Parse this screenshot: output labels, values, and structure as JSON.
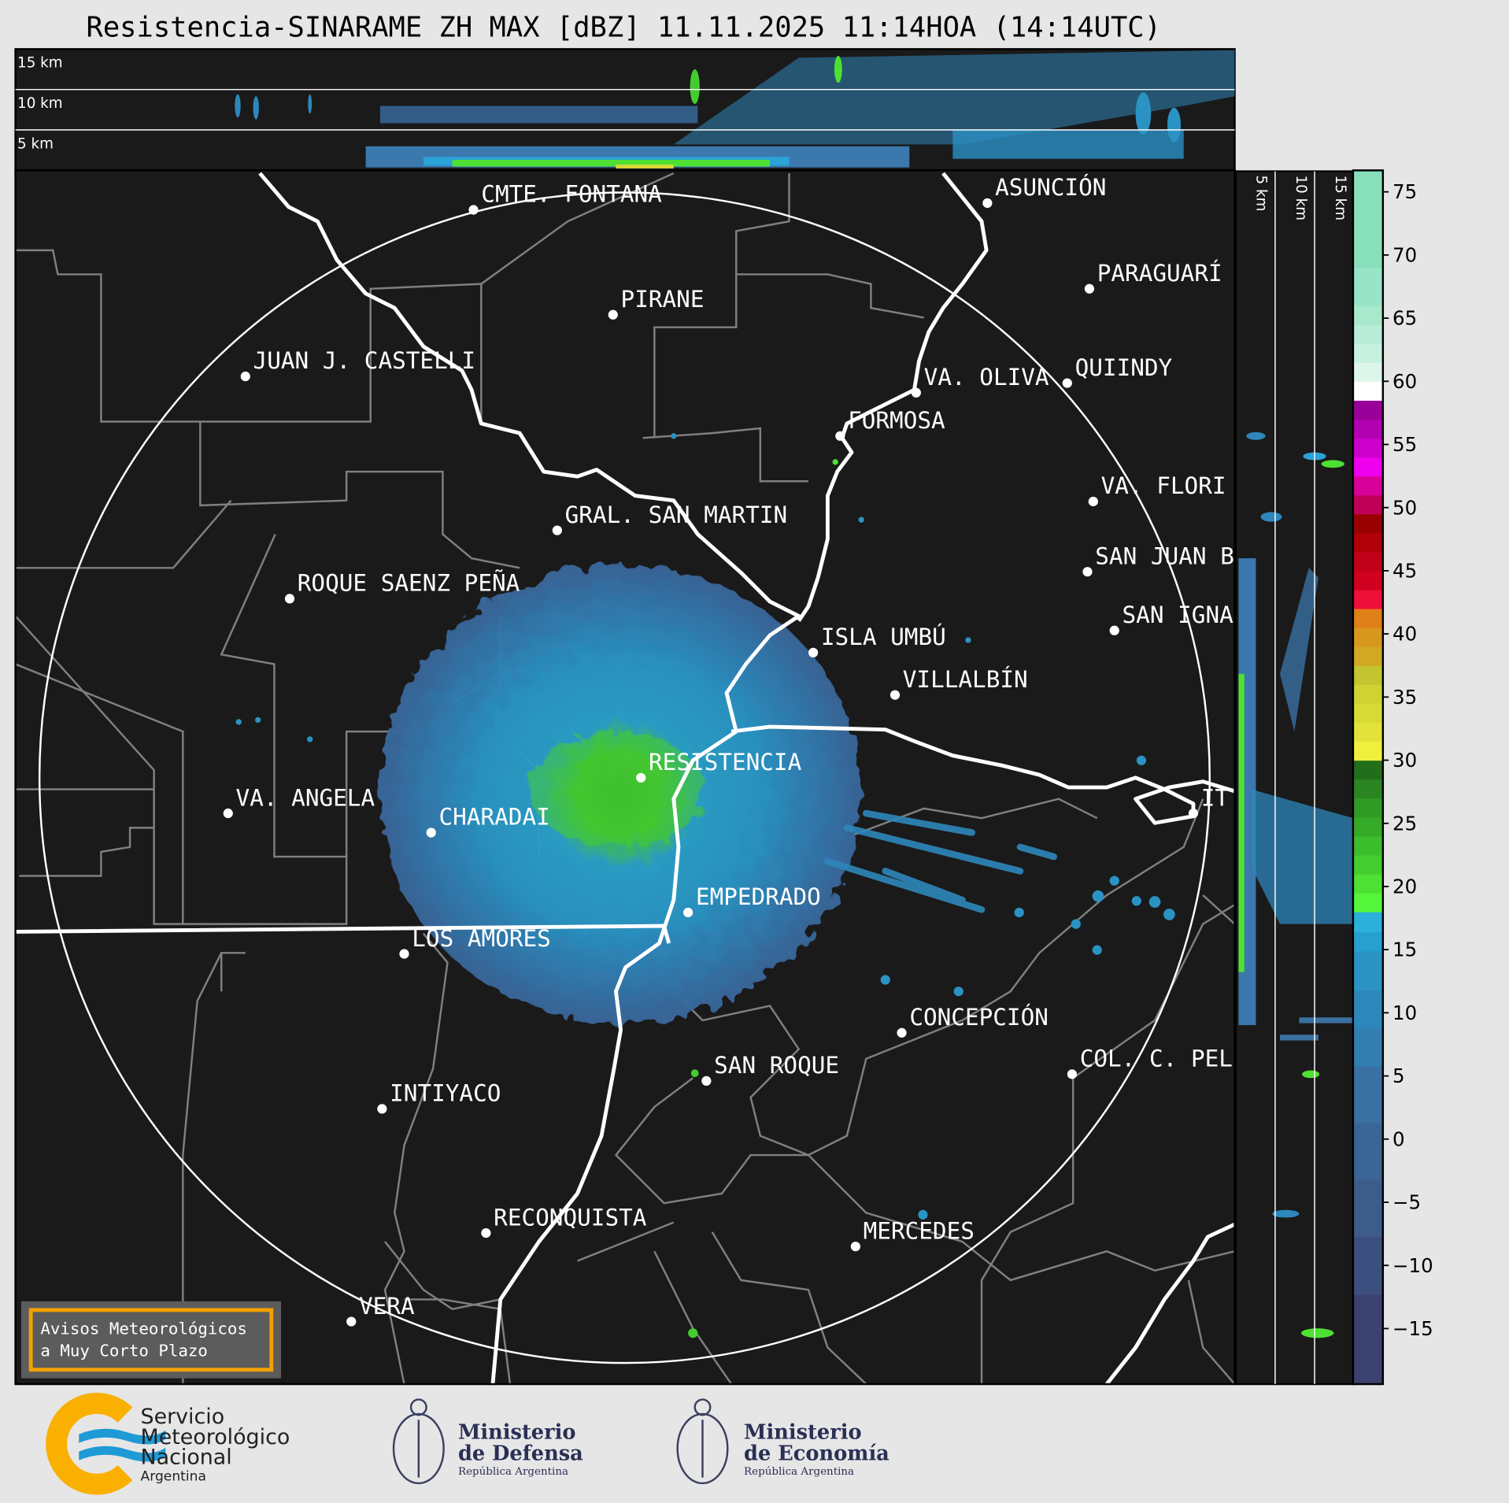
{
  "title": "Resistencia-SINARAME ZH MAX [dBZ] 11.11.2025 11:14HOA (14:14UTC)",
  "top_profile": {
    "labels": [
      "15 km",
      "10 km",
      "5 km"
    ]
  },
  "side_profile": {
    "labels": [
      "5 km",
      "10 km",
      "15 km"
    ]
  },
  "map": {
    "background": "#1a1a1a",
    "range_ring_color": "#ffffff",
    "boundary_color": "#808080",
    "cities": [
      "CMTE. FONTANA",
      "ASUNCIÓN",
      "PARAGUARÍ",
      "PIRANE",
      "JUAN J. CASTELLI",
      "VA. OLIVA",
      "QUIINDY",
      "FORMOSA",
      "VA. FLORI",
      "GRAL. SAN MARTIN",
      "SAN JUAN B",
      "ROQUE SAENZ PEÑA",
      "SAN IGNA",
      "ISLA UMBÚ",
      "VILLALBÍN",
      "RESISTENCIA",
      "VA. ANGELA",
      "CHARADAI",
      "IT",
      "EMPEDRADO",
      "LOS AMORES",
      "CONCEPCIÓN",
      "SAN ROQUE",
      "COL. C. PEL",
      "INTIYACO",
      "RECONQUISTA",
      "MERCEDES",
      "VERA"
    ]
  },
  "colorbar": {
    "unit": "dBZ",
    "range": [
      -19.4,
      76.7
    ],
    "ticks": [
      75,
      70,
      65,
      60,
      55,
      50,
      45,
      40,
      35,
      30,
      25,
      20,
      15,
      10,
      5,
      0,
      -5,
      -10,
      -15
    ],
    "bins": [
      [
        -19.4,
        -12.3,
        "#3c4270"
      ],
      [
        -12.3,
        -7.7,
        "#3d4f7e"
      ],
      [
        -7.7,
        -3.2,
        "#3d5c8a"
      ],
      [
        -3.2,
        1.3,
        "#3b6596"
      ],
      [
        1.3,
        5.8,
        "#3a70a2"
      ],
      [
        5.8,
        8.8,
        "#337eb0"
      ],
      [
        8.8,
        11.8,
        "#2e87bb"
      ],
      [
        11.8,
        14.9,
        "#2a93c3"
      ],
      [
        14.9,
        16.4,
        "#27a0d0"
      ],
      [
        16.4,
        18,
        "#2bb0dc"
      ],
      [
        18,
        19.5,
        "#55f53a"
      ],
      [
        19.5,
        21,
        "#4ee033"
      ],
      [
        21,
        22.5,
        "#44cc30"
      ],
      [
        22.5,
        24,
        "#3cbd2b"
      ],
      [
        24,
        25.5,
        "#35a928"
      ],
      [
        25.5,
        27,
        "#309a25"
      ],
      [
        27,
        28.5,
        "#2a8522"
      ],
      [
        28.5,
        30,
        "#236e1c"
      ],
      [
        30,
        31.5,
        "#eef03c"
      ],
      [
        31.5,
        33,
        "#e2e33a"
      ],
      [
        33,
        34.5,
        "#d8da36"
      ],
      [
        34.5,
        36,
        "#d0d234"
      ],
      [
        36,
        37.5,
        "#c4c430"
      ],
      [
        37.5,
        39,
        "#d0a824"
      ],
      [
        39,
        40.5,
        "#d89820"
      ],
      [
        40.5,
        42,
        "#e08018"
      ],
      [
        42,
        43.5,
        "#ee1038"
      ],
      [
        43.5,
        45,
        "#d00020"
      ],
      [
        45,
        46.5,
        "#c00018"
      ],
      [
        46.5,
        48,
        "#b00008"
      ],
      [
        48,
        49.5,
        "#990000"
      ],
      [
        49.5,
        51,
        "#c00058"
      ],
      [
        51,
        52.5,
        "#d8009a"
      ],
      [
        52.5,
        54,
        "#ee00ee"
      ],
      [
        54,
        55.5,
        "#cc00cc"
      ],
      [
        55.5,
        57,
        "#b000b0"
      ],
      [
        57,
        58.5,
        "#990099"
      ],
      [
        58.5,
        60,
        "#ffffff"
      ],
      [
        60,
        61.5,
        "#def5ea"
      ],
      [
        61.5,
        63,
        "#c8f0de"
      ],
      [
        63,
        64.5,
        "#b8ecd6"
      ],
      [
        64.5,
        66,
        "#a8e8cc"
      ],
      [
        66,
        69,
        "#98e4c6"
      ],
      [
        69,
        76.7,
        "#88dfbc"
      ]
    ]
  },
  "warning_box": {
    "line1": "Avisos Meteorológicos",
    "line2": "a Muy Corto Plazo",
    "border_color": "#f5a000"
  },
  "logos": {
    "smn": {
      "line1": "Servicio",
      "line2": "Meteorológico",
      "line3": "Nacional",
      "line4": "Argentina",
      "orange": "#f9b000",
      "blue": "#1e9ad6"
    },
    "defensa": {
      "line1": "Ministerio",
      "line2": "de Defensa",
      "line3": "República Argentina"
    },
    "economia": {
      "line1": "Ministerio",
      "line2": "de Economía",
      "line3": "República Argentina"
    }
  }
}
